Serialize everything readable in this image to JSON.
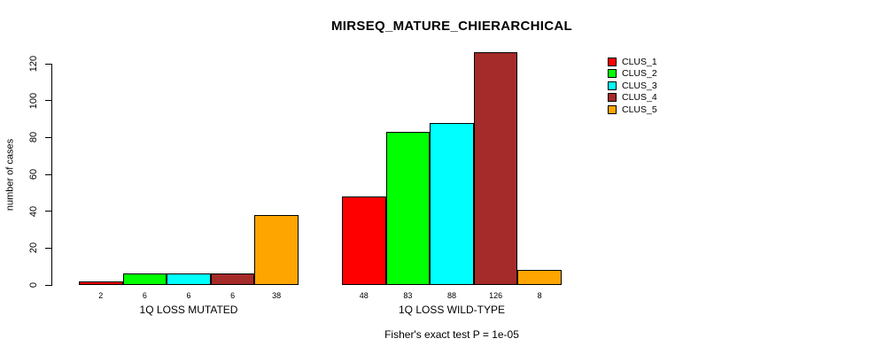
{
  "chart_data": {
    "type": "bar",
    "title": "MIRSEQ_MATURE_CHIERARCHICAL",
    "ylabel": "number of cases",
    "annotation": "Fisher's exact test P = 1e-05",
    "categories": [
      "1Q LOSS MUTATED",
      "1Q LOSS WILD-TYPE"
    ],
    "series": [
      {
        "name": "CLUS_1",
        "color": "#ff0000",
        "values": [
          2,
          48
        ]
      },
      {
        "name": "CLUS_2",
        "color": "#00ff00",
        "values": [
          6,
          83
        ]
      },
      {
        "name": "CLUS_3",
        "color": "#00ffff",
        "values": [
          6,
          88
        ]
      },
      {
        "name": "CLUS_4",
        "color": "#a52a2a",
        "values": [
          6,
          126
        ]
      },
      {
        "name": "CLUS_5",
        "color": "#ffa500",
        "values": [
          38,
          8
        ]
      }
    ],
    "bar_value_labels": [
      [
        2,
        6,
        6,
        6,
        38
      ],
      [
        48,
        83,
        88,
        126,
        8
      ]
    ],
    "yticks": [
      0,
      20,
      40,
      60,
      80,
      100,
      120
    ],
    "ylim": [
      0,
      130
    ],
    "legend_position": "topright",
    "grid": false,
    "background": "#ffffff",
    "text_color": "#000000"
  }
}
